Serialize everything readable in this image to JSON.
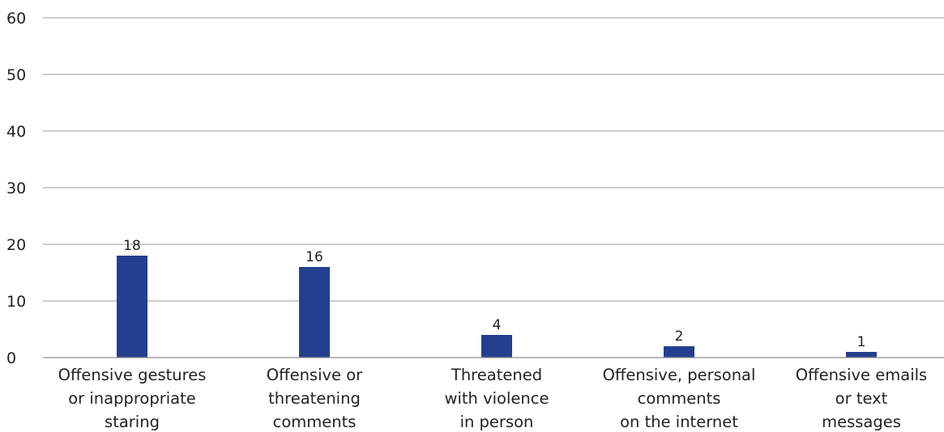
{
  "chart_data": {
    "type": "bar",
    "categories": [
      [
        "Offensive gestures",
        "or inappropriate",
        "staring"
      ],
      [
        "Offensive or",
        "threatening",
        "comments"
      ],
      [
        "Threatened",
        "with violence",
        "in person"
      ],
      [
        "Offensive, personal",
        "comments",
        "on the internet"
      ],
      [
        "Offensive emails",
        "or text",
        "messages"
      ]
    ],
    "values": [
      18,
      16,
      4,
      2,
      1
    ],
    "data_labels": [
      "18",
      "16",
      "4",
      "2",
      "1"
    ],
    "ylim": [
      0,
      60
    ],
    "yticks": [
      0,
      10,
      20,
      30,
      40,
      50,
      60
    ],
    "grid": true,
    "legend": "none",
    "title": "",
    "xlabel": "",
    "ylabel": "",
    "bar_color": "#233f8f"
  }
}
